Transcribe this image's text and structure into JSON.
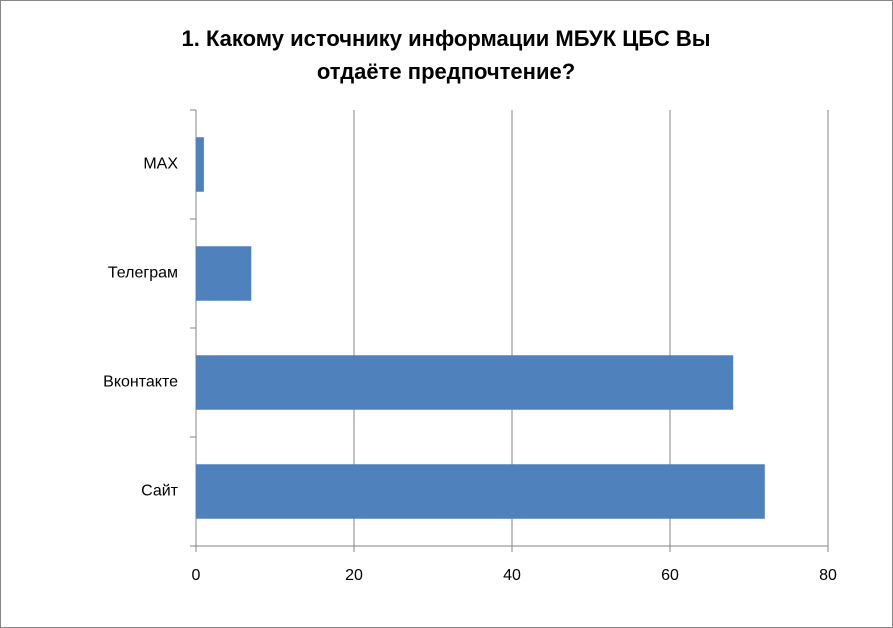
{
  "chart_data": {
    "type": "barh",
    "title": [
      "1. Какому источнику информации МБУК ЦБС Вы",
      "отдаёте предпочтение?"
    ],
    "categories": [
      "MAX",
      "Телеграм",
      "Вконтакте",
      "Сайт"
    ],
    "values": [
      1,
      7,
      68,
      72
    ],
    "color": "#4f81bd",
    "xlim": [
      0,
      80
    ],
    "xticks": [
      0,
      20,
      40,
      60,
      80
    ],
    "grid": true
  }
}
